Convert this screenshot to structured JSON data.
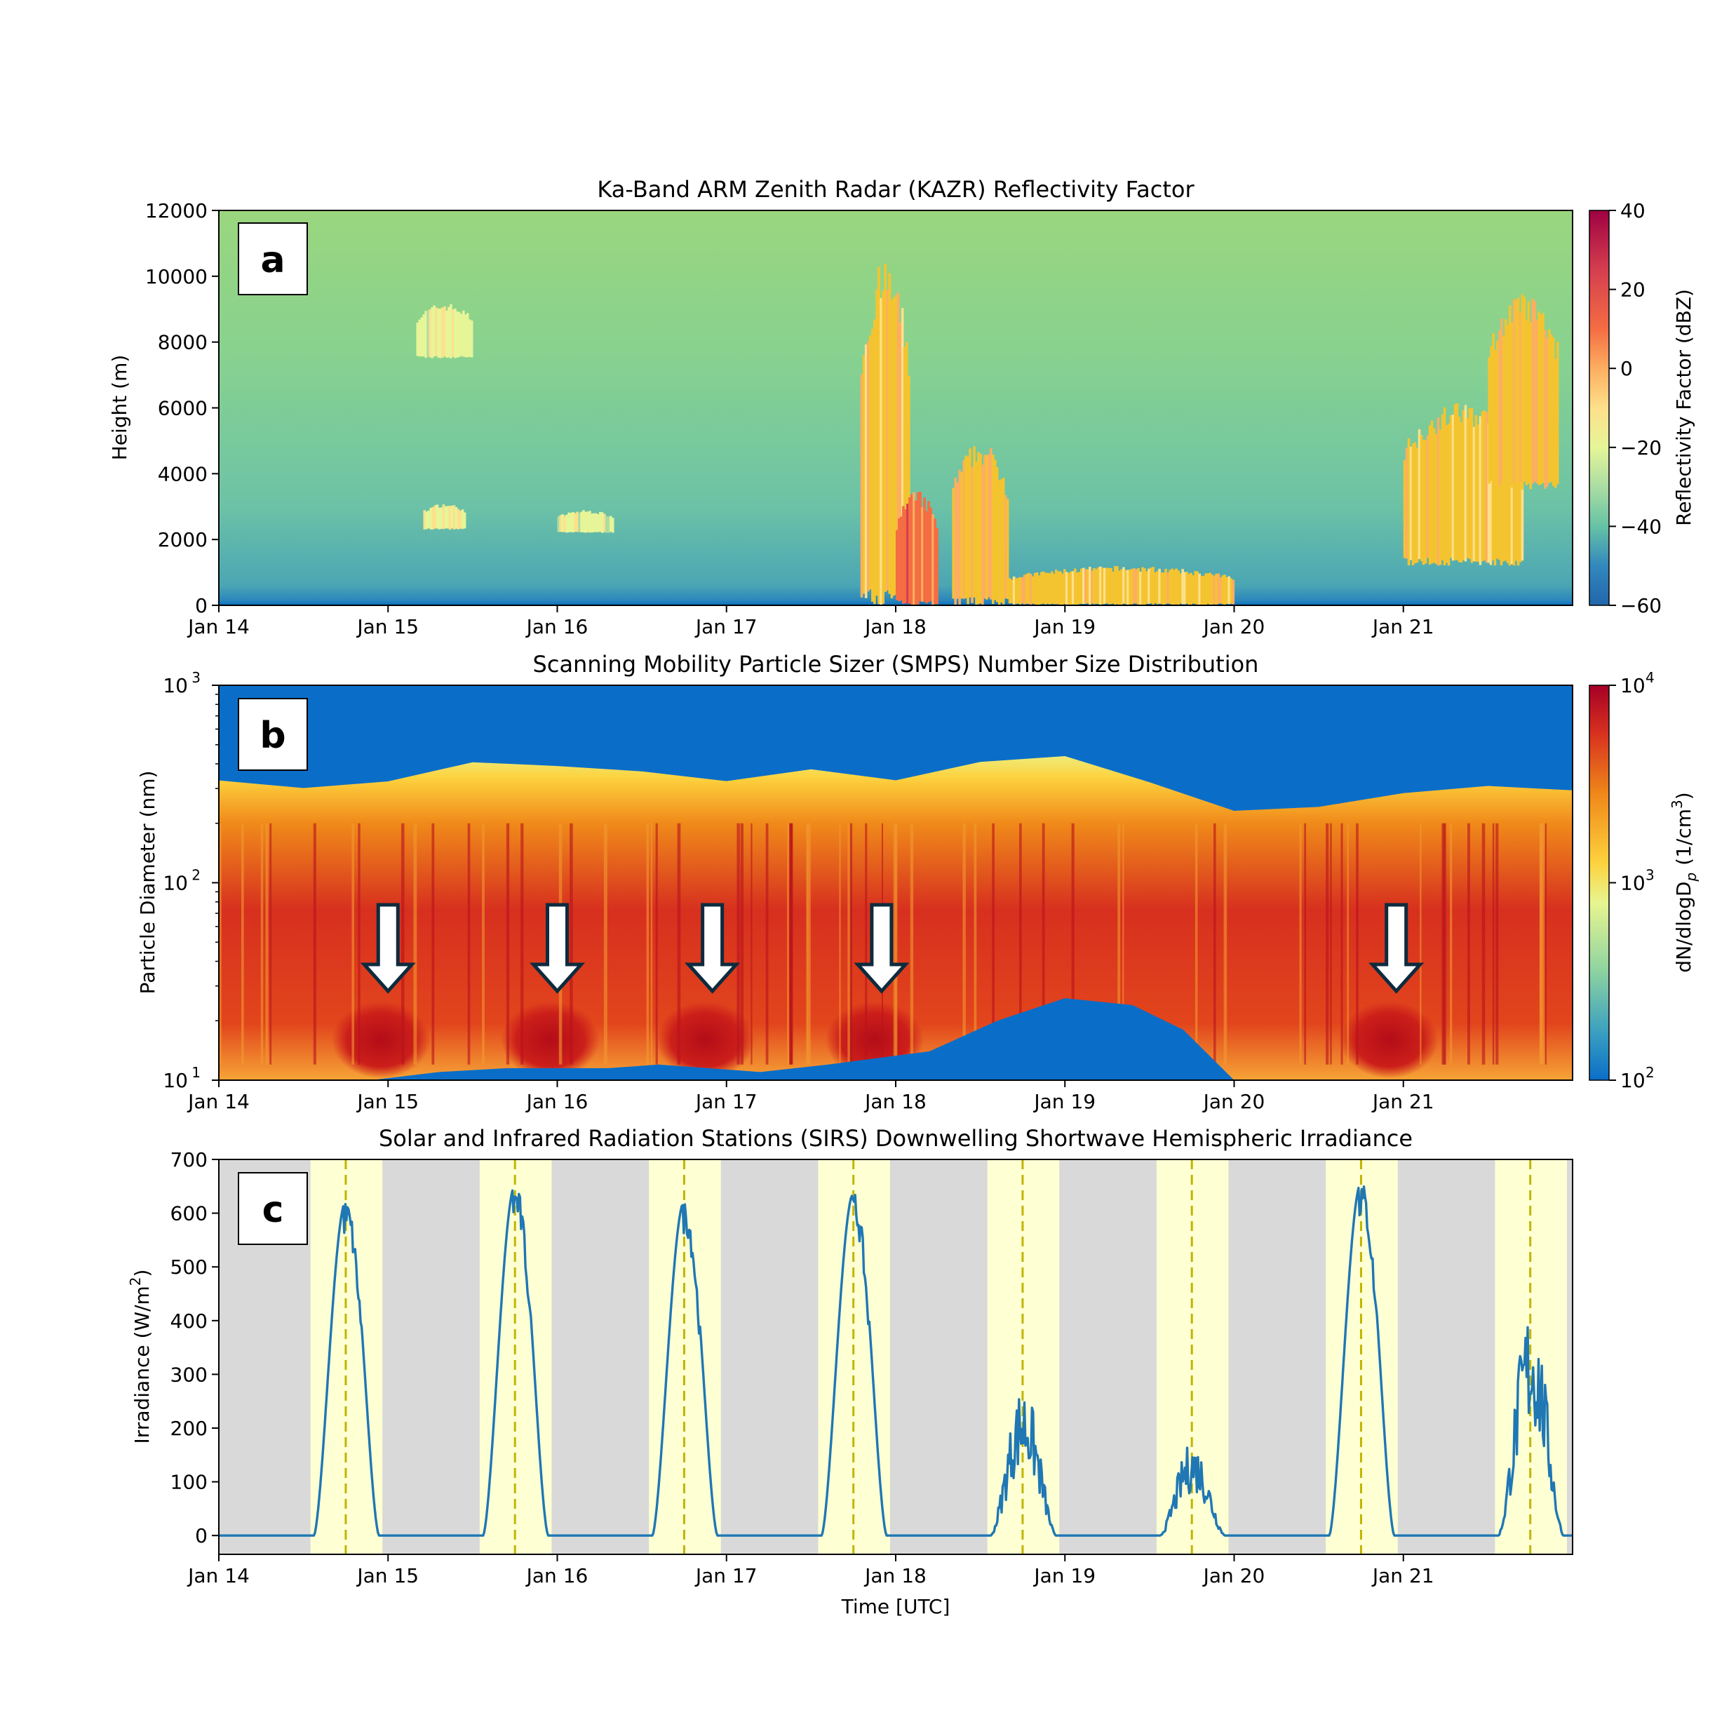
{
  "chart_data": [
    {
      "panel": "a",
      "type": "heatmap",
      "title": "Ka-Band ARM Zenith Radar (KAZR) Reflectivity Factor",
      "xlabel": "",
      "ylabel": "Height (m)",
      "x_ticks": [
        "Jan 14",
        "Jan 15",
        "Jan 16",
        "Jan 17",
        "Jan 18",
        "Jan 19",
        "Jan 20",
        "Jan 21"
      ],
      "ylim": [
        0,
        12000
      ],
      "y_ticks": [
        "0",
        "2000",
        "4000",
        "6000",
        "8000",
        "10000",
        "12000"
      ],
      "colorbar": {
        "label": "Reflectivity Factor (dBZ)",
        "range": [
          -60,
          40
        ],
        "ticks": [
          "40",
          "20",
          "0",
          "−20",
          "−40",
          "−60"
        ],
        "colormap": "Spectral_r"
      },
      "background_dBZ": -30,
      "features": [
        {
          "start": "Jan 15 04:00",
          "end": "Jan 15 12:00",
          "base_m": 7500,
          "top_m": 9200,
          "dBZ": -15
        },
        {
          "start": "Jan 15 05:00",
          "end": "Jan 15 11:00",
          "base_m": 2300,
          "top_m": 3100,
          "dBZ": -10
        },
        {
          "start": "Jan 16 00:00",
          "end": "Jan 16 08:00",
          "base_m": 2200,
          "top_m": 2900,
          "dBZ": -15
        },
        {
          "start": "Jan 17 19:00",
          "end": "Jan 18 02:00",
          "base_m": 0,
          "top_m": 10500,
          "dBZ": 5
        },
        {
          "start": "Jan 18 00:00",
          "end": "Jan 18 06:00",
          "base_m": 0,
          "top_m": 3500,
          "dBZ": 25
        },
        {
          "start": "Jan 18 08:00",
          "end": "Jan 18 16:00",
          "base_m": 0,
          "top_m": 5000,
          "dBZ": 10
        },
        {
          "start": "Jan 18 16:00",
          "end": "Jan 20 00:00",
          "base_m": 0,
          "top_m": 1200,
          "dBZ": 5
        },
        {
          "start": "Jan 21 00:00",
          "end": "Jan 21 17:00",
          "base_m": 1200,
          "top_m": 6200,
          "dBZ": 5
        },
        {
          "start": "Jan 21 12:00",
          "end": "Jan 21 22:00",
          "base_m": 3500,
          "top_m": 9500,
          "dBZ": 8
        }
      ],
      "label_box": "a"
    },
    {
      "panel": "b",
      "type": "heatmap",
      "title": "Scanning Mobility Particle Sizer (SMPS) Number Size Distribution",
      "xlabel": "",
      "ylabel": "Particle Diameter (nm)",
      "yscale": "log",
      "ylim": [
        10,
        1000
      ],
      "x_ticks": [
        "Jan 14",
        "Jan 15",
        "Jan 16",
        "Jan 17",
        "Jan 18",
        "Jan 19",
        "Jan 20",
        "Jan 21"
      ],
      "colorbar": {
        "label": "dN/dlogD",
        "label_subscript": "p",
        "label_unit_pre": "(1/cm",
        "label_unit_sup": "3",
        "label_unit_post": ")",
        "range": [
          100,
          10000
        ],
        "scale": "log",
        "colormap": "Spectral_r"
      },
      "upper_edge_nm": [
        {
          "t": "Jan 14 00:00",
          "d": 320
        },
        {
          "t": "Jan 14 12:00",
          "d": 300
        },
        {
          "t": "Jan 15 00:00",
          "d": 320
        },
        {
          "t": "Jan 15 12:00",
          "d": 420
        },
        {
          "t": "Jan 16 00:00",
          "d": 380
        },
        {
          "t": "Jan 16 12:00",
          "d": 360
        },
        {
          "t": "Jan 17 00:00",
          "d": 330
        },
        {
          "t": "Jan 17 12:00",
          "d": 370
        },
        {
          "t": "Jan 18 00:00",
          "d": 340
        },
        {
          "t": "Jan 18 12:00",
          "d": 400
        },
        {
          "t": "Jan 19 00:00",
          "d": 430
        },
        {
          "t": "Jan 19 12:00",
          "d": 330
        },
        {
          "t": "Jan 20 00:00",
          "d": 230
        },
        {
          "t": "Jan 20 12:00",
          "d": 250
        },
        {
          "t": "Jan 21 00:00",
          "d": 280
        },
        {
          "t": "Jan 21 12:00",
          "d": 300
        },
        {
          "t": "Jan 22 00:00",
          "d": 300
        }
      ],
      "new_particle_formation_events": [
        "Jan 15 00:00",
        "Jan 16 00:00",
        "Jan 16 22:00",
        "Jan 17 22:00",
        "Jan 20 23:00"
      ],
      "label_box": "b"
    },
    {
      "panel": "c",
      "type": "line",
      "title": "Solar and Infrared Radiation Stations (SIRS) Downwelling Shortwave Hemispheric Irradiance",
      "xlabel": "Time [UTC]",
      "ylabel_pre": "Irradiance (W/m",
      "ylabel_sup": "2",
      "ylabel_post": ")",
      "ylim": [
        -35,
        700
      ],
      "y_ticks": [
        0,
        100,
        200,
        300,
        400,
        500,
        600,
        700
      ],
      "x_ticks": [
        "Jan 14",
        "Jan 15",
        "Jan 16",
        "Jan 17",
        "Jan 18",
        "Jan 19",
        "Jan 20",
        "Jan 21"
      ],
      "series_color": "#1f77b4",
      "day_shading_color": "#ffffd4",
      "night_shading_color": "#d9d9d9",
      "solar_noon_line_color": "#bfb600",
      "days": [
        {
          "date": "Jan 14",
          "sunrise_h": 13.0,
          "solar_noon_h": 18.0,
          "sunset_h": 23.2,
          "peak_wm2": 625,
          "cloudy": false
        },
        {
          "date": "Jan 15",
          "sunrise_h": 13.0,
          "solar_noon_h": 18.0,
          "sunset_h": 23.2,
          "peak_wm2": 655,
          "cloudy": false
        },
        {
          "date": "Jan 16",
          "sunrise_h": 13.0,
          "solar_noon_h": 18.0,
          "sunset_h": 23.2,
          "peak_wm2": 625,
          "cloudy": false
        },
        {
          "date": "Jan 17",
          "sunrise_h": 13.0,
          "solar_noon_h": 18.0,
          "sunset_h": 23.2,
          "peak_wm2": 640,
          "cloudy": false
        },
        {
          "date": "Jan 18",
          "sunrise_h": 13.0,
          "solar_noon_h": 18.0,
          "sunset_h": 23.2,
          "peak_wm2": 280,
          "cloudy": true
        },
        {
          "date": "Jan 19",
          "sunrise_h": 13.0,
          "solar_noon_h": 18.0,
          "sunset_h": 23.2,
          "peak_wm2": 175,
          "cloudy": true
        },
        {
          "date": "Jan 20",
          "sunrise_h": 13.0,
          "solar_noon_h": 18.0,
          "sunset_h": 23.2,
          "peak_wm2": 660,
          "cloudy": false
        },
        {
          "date": "Jan 21",
          "sunrise_h": 13.0,
          "solar_noon_h": 18.0,
          "sunset_h": 23.2,
          "peak_wm2": 430,
          "cloudy": true
        }
      ],
      "label_box": "c"
    }
  ]
}
